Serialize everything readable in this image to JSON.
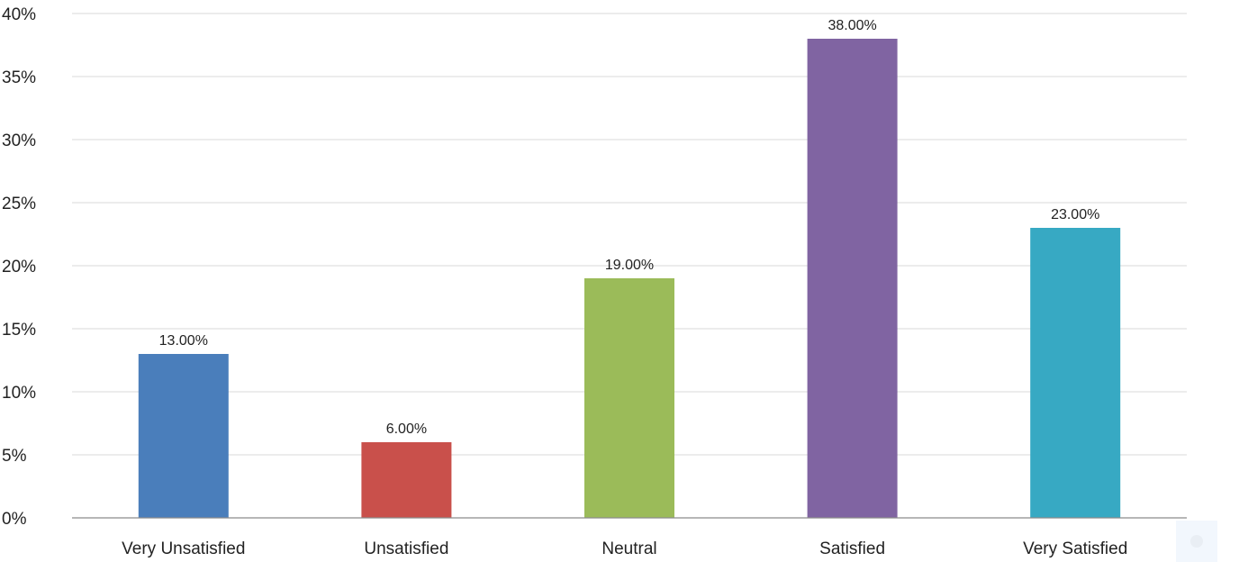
{
  "chart_data": {
    "type": "bar",
    "categories": [
      "Very Unsatisfied",
      "Unsatisfied",
      "Neutral",
      "Satisfied",
      "Very Satisfied"
    ],
    "values": [
      13,
      6,
      19,
      38,
      23
    ],
    "data_labels": [
      "13.00%",
      "6.00%",
      "19.00%",
      "38.00%",
      "23.00%"
    ],
    "colors": [
      "#4a7ebb",
      "#c9504b",
      "#9bbb59",
      "#8064a2",
      "#37a9c3"
    ],
    "ylim": [
      0,
      40
    ],
    "yticks": [
      0,
      5,
      10,
      15,
      20,
      25,
      30,
      35,
      40
    ],
    "ytick_labels": [
      "0%",
      "5%",
      "10%",
      "15%",
      "20%",
      "25%",
      "30%",
      "35%",
      "40%"
    ],
    "grid": true,
    "legend": "none"
  }
}
